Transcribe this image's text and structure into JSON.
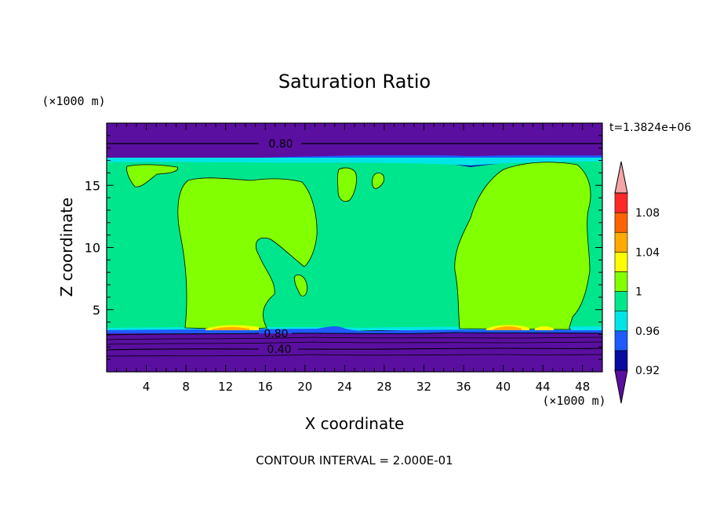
{
  "chart_data": {
    "type": "heatmap",
    "title": "Saturation Ratio",
    "time_label": "t=1.3824e+06",
    "xlabel": "X coordinate",
    "ylabel": "Z coordinate",
    "x_unit": "(×1000 m)",
    "y_unit": "(×1000 m)",
    "footer": "CONTOUR INTERVAL = 2.000E-01",
    "xlim": [
      0,
      50
    ],
    "ylim": [
      0,
      20
    ],
    "x_ticks": [
      4,
      8,
      12,
      16,
      20,
      24,
      28,
      32,
      36,
      40,
      44,
      48
    ],
    "y_ticks": [
      5,
      10,
      15
    ],
    "contour_labels": [
      "0.80",
      "0.80",
      "0.40"
    ],
    "colorbar": {
      "labels": [
        "0.92",
        "0.96",
        "1",
        "1.04",
        "1.08"
      ],
      "levels": [
        {
          "value": 0.92,
          "color": "#5a0fa0"
        },
        {
          "value": 0.94,
          "color": "#0a0aa0"
        },
        {
          "value": 0.96,
          "color": "#1e5aff"
        },
        {
          "value": 0.98,
          "color": "#00e6e6"
        },
        {
          "value": 1.0,
          "color": "#00e68c"
        },
        {
          "value": 1.02,
          "color": "#82ff00"
        },
        {
          "value": 1.04,
          "color": "#ffff00"
        },
        {
          "value": 1.06,
          "color": "#ffaa00"
        },
        {
          "value": 1.08,
          "color": "#ff6400"
        },
        {
          "value": 1.1,
          "color": "#ff2828"
        },
        {
          "value": 1.12,
          "color": "#f4a5a5"
        }
      ]
    },
    "colors": {
      "background_low": "#5a0fa0",
      "main_field": "#00e68c",
      "supersaturated": "#82ff00",
      "dark_band": "#0a0aa0",
      "blue_band": "#1e5aff",
      "cyan_band": "#00e6e6"
    }
  }
}
